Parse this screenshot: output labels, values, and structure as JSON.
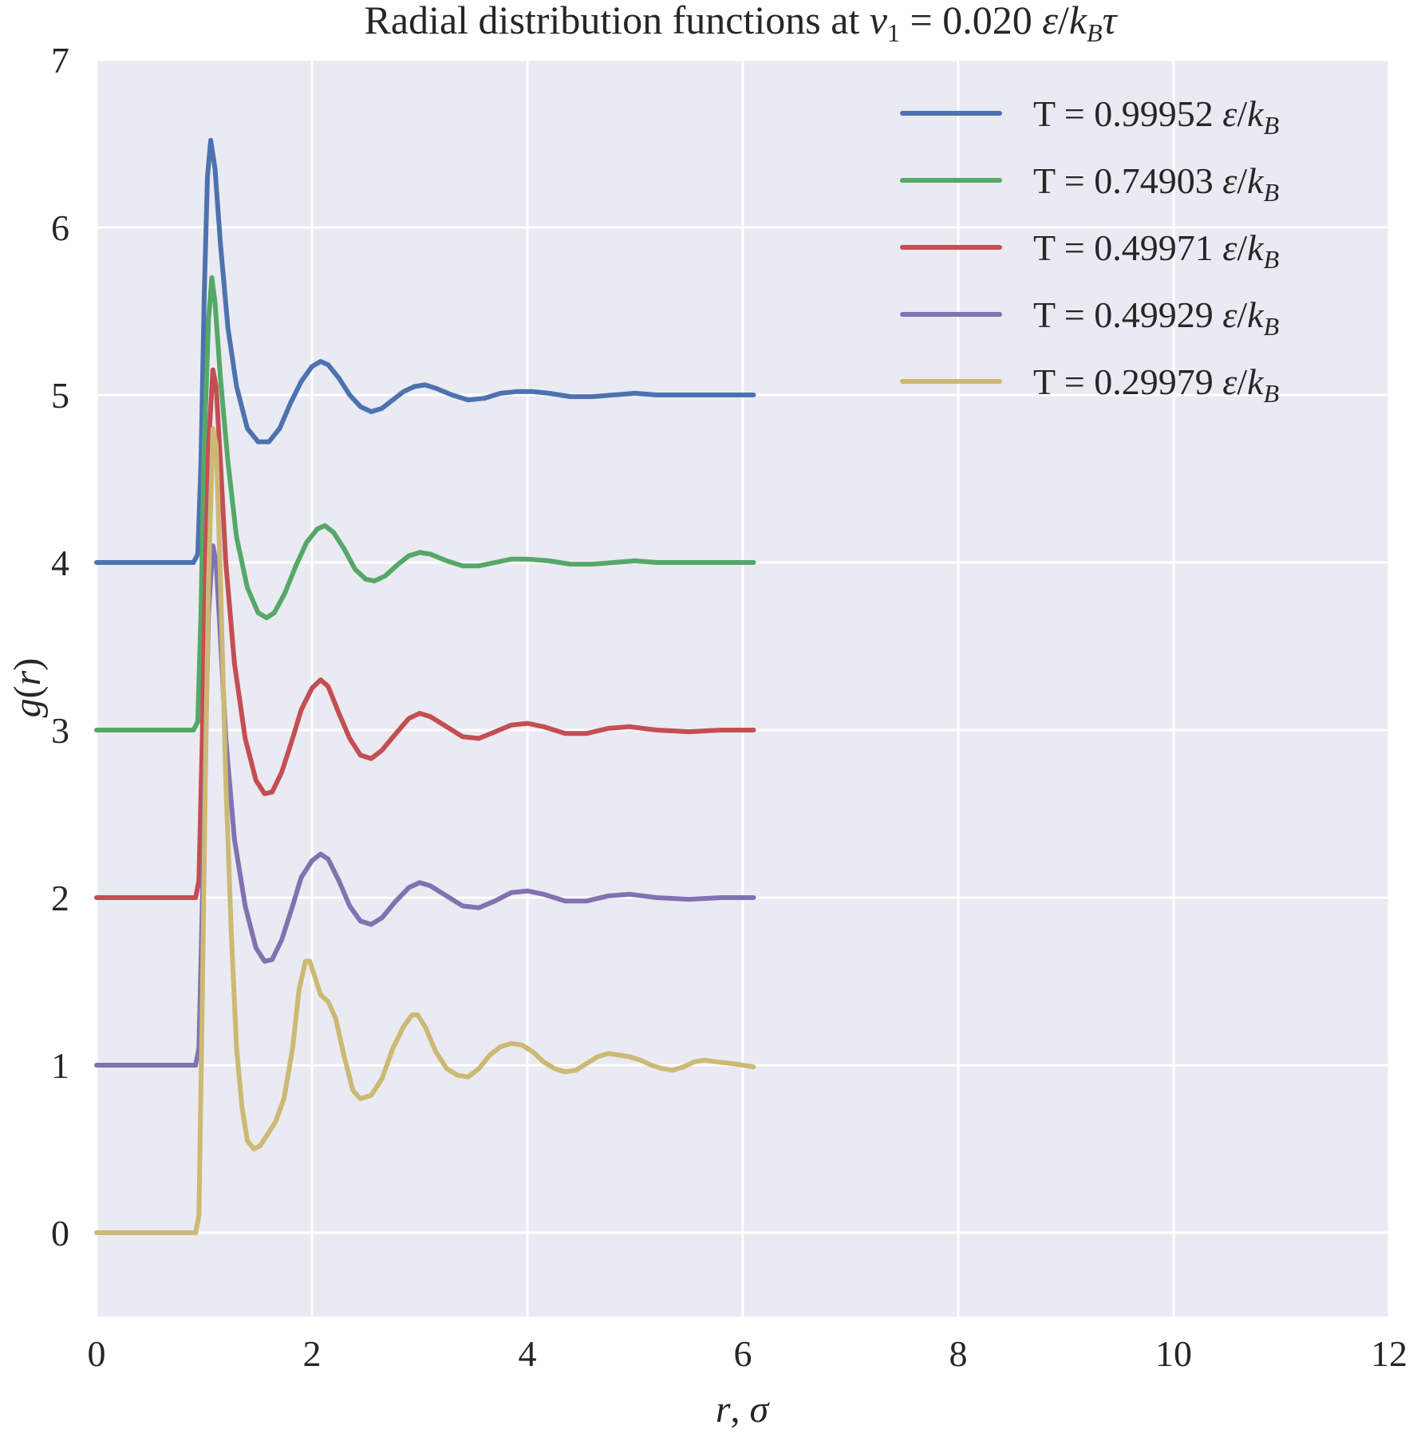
{
  "chart_data": {
    "type": "line",
    "title": {
      "prefix": "Radial distribution functions at ",
      "var": "v",
      "var_sub": "1",
      "equals": " = 0.020 ",
      "unit_eps": "ε",
      "unit_slash": "/",
      "unit_k": "k",
      "unit_sub": "B",
      "unit_tau": "τ"
    },
    "xlabel": {
      "var": "r",
      "sep": ", ",
      "unit": "σ"
    },
    "ylabel": {
      "g": "g",
      "open": "(",
      "var": "r",
      "close": ")"
    },
    "xlim": [
      0,
      12
    ],
    "ylim": [
      -0.5,
      7
    ],
    "xticks": [
      "0",
      "2",
      "4",
      "6",
      "8",
      "10",
      "12"
    ],
    "yticks": [
      "0",
      "1",
      "2",
      "3",
      "4",
      "5",
      "6",
      "7"
    ],
    "grid": true,
    "background": "#eaeaf2",
    "legend_position": "upper right",
    "legend_unit": {
      "eps": "ε",
      "slash": "/",
      "k": "k",
      "sub": "B"
    },
    "series": [
      {
        "name": "T = 0.99952",
        "color": "#4c72b0",
        "points": [
          [
            0.0,
            4.0
          ],
          [
            0.9,
            4.0
          ],
          [
            0.94,
            4.05
          ],
          [
            0.97,
            4.6
          ],
          [
            1.0,
            5.6
          ],
          [
            1.03,
            6.3
          ],
          [
            1.06,
            6.52
          ],
          [
            1.1,
            6.35
          ],
          [
            1.15,
            5.9
          ],
          [
            1.22,
            5.4
          ],
          [
            1.3,
            5.05
          ],
          [
            1.4,
            4.8
          ],
          [
            1.5,
            4.72
          ],
          [
            1.6,
            4.72
          ],
          [
            1.7,
            4.8
          ],
          [
            1.8,
            4.95
          ],
          [
            1.9,
            5.08
          ],
          [
            2.0,
            5.17
          ],
          [
            2.08,
            5.2
          ],
          [
            2.15,
            5.18
          ],
          [
            2.25,
            5.1
          ],
          [
            2.35,
            5.0
          ],
          [
            2.45,
            4.93
          ],
          [
            2.55,
            4.9
          ],
          [
            2.65,
            4.92
          ],
          [
            2.75,
            4.97
          ],
          [
            2.85,
            5.02
          ],
          [
            2.95,
            5.05
          ],
          [
            3.05,
            5.06
          ],
          [
            3.15,
            5.04
          ],
          [
            3.3,
            5.0
          ],
          [
            3.45,
            4.97
          ],
          [
            3.6,
            4.98
          ],
          [
            3.75,
            5.01
          ],
          [
            3.9,
            5.02
          ],
          [
            4.05,
            5.02
          ],
          [
            4.2,
            5.01
          ],
          [
            4.4,
            4.99
          ],
          [
            4.6,
            4.99
          ],
          [
            4.8,
            5.0
          ],
          [
            5.0,
            5.01
          ],
          [
            5.2,
            5.0
          ],
          [
            5.5,
            5.0
          ],
          [
            5.8,
            5.0
          ],
          [
            6.1,
            5.0
          ]
        ]
      },
      {
        "name": "T = 0.74903",
        "color": "#55a868",
        "points": [
          [
            0.0,
            3.0
          ],
          [
            0.9,
            3.0
          ],
          [
            0.94,
            3.05
          ],
          [
            0.97,
            3.7
          ],
          [
            1.0,
            4.7
          ],
          [
            1.04,
            5.45
          ],
          [
            1.07,
            5.7
          ],
          [
            1.1,
            5.55
          ],
          [
            1.15,
            5.1
          ],
          [
            1.22,
            4.6
          ],
          [
            1.3,
            4.15
          ],
          [
            1.4,
            3.85
          ],
          [
            1.5,
            3.7
          ],
          [
            1.58,
            3.67
          ],
          [
            1.65,
            3.7
          ],
          [
            1.75,
            3.82
          ],
          [
            1.85,
            3.98
          ],
          [
            1.95,
            4.12
          ],
          [
            2.05,
            4.2
          ],
          [
            2.12,
            4.22
          ],
          [
            2.2,
            4.18
          ],
          [
            2.3,
            4.08
          ],
          [
            2.4,
            3.96
          ],
          [
            2.5,
            3.9
          ],
          [
            2.58,
            3.89
          ],
          [
            2.68,
            3.92
          ],
          [
            2.8,
            3.99
          ],
          [
            2.9,
            4.04
          ],
          [
            3.0,
            4.06
          ],
          [
            3.1,
            4.05
          ],
          [
            3.25,
            4.01
          ],
          [
            3.4,
            3.98
          ],
          [
            3.55,
            3.98
          ],
          [
            3.7,
            4.0
          ],
          [
            3.85,
            4.02
          ],
          [
            4.0,
            4.02
          ],
          [
            4.2,
            4.01
          ],
          [
            4.4,
            3.99
          ],
          [
            4.6,
            3.99
          ],
          [
            4.8,
            4.0
          ],
          [
            5.0,
            4.01
          ],
          [
            5.2,
            4.0
          ],
          [
            5.5,
            4.0
          ],
          [
            5.8,
            4.0
          ],
          [
            6.1,
            4.0
          ]
        ]
      },
      {
        "name": "T = 0.49971",
        "color": "#c44e52",
        "points": [
          [
            0.0,
            2.0
          ],
          [
            0.92,
            2.0
          ],
          [
            0.95,
            2.1
          ],
          [
            0.98,
            2.9
          ],
          [
            1.01,
            3.9
          ],
          [
            1.04,
            4.7
          ],
          [
            1.08,
            5.15
          ],
          [
            1.11,
            5.05
          ],
          [
            1.15,
            4.6
          ],
          [
            1.2,
            4.0
          ],
          [
            1.28,
            3.4
          ],
          [
            1.38,
            2.95
          ],
          [
            1.48,
            2.7
          ],
          [
            1.56,
            2.62
          ],
          [
            1.63,
            2.63
          ],
          [
            1.72,
            2.75
          ],
          [
            1.82,
            2.95
          ],
          [
            1.9,
            3.12
          ],
          [
            2.0,
            3.25
          ],
          [
            2.08,
            3.3
          ],
          [
            2.15,
            3.26
          ],
          [
            2.25,
            3.1
          ],
          [
            2.35,
            2.95
          ],
          [
            2.45,
            2.85
          ],
          [
            2.55,
            2.83
          ],
          [
            2.65,
            2.88
          ],
          [
            2.78,
            2.98
          ],
          [
            2.9,
            3.07
          ],
          [
            3.0,
            3.1
          ],
          [
            3.1,
            3.08
          ],
          [
            3.25,
            3.02
          ],
          [
            3.4,
            2.96
          ],
          [
            3.55,
            2.95
          ],
          [
            3.7,
            2.99
          ],
          [
            3.85,
            3.03
          ],
          [
            4.0,
            3.04
          ],
          [
            4.15,
            3.02
          ],
          [
            4.35,
            2.98
          ],
          [
            4.55,
            2.98
          ],
          [
            4.75,
            3.01
          ],
          [
            4.95,
            3.02
          ],
          [
            5.2,
            3.0
          ],
          [
            5.5,
            2.99
          ],
          [
            5.8,
            3.0
          ],
          [
            6.1,
            3.0
          ]
        ]
      },
      {
        "name": "T = 0.49929",
        "color": "#8172b2",
        "points": [
          [
            0.0,
            1.0
          ],
          [
            0.92,
            1.0
          ],
          [
            0.95,
            1.1
          ],
          [
            0.98,
            1.9
          ],
          [
            1.01,
            2.9
          ],
          [
            1.04,
            3.7
          ],
          [
            1.08,
            4.1
          ],
          [
            1.11,
            4.0
          ],
          [
            1.15,
            3.55
          ],
          [
            1.2,
            2.95
          ],
          [
            1.28,
            2.35
          ],
          [
            1.38,
            1.95
          ],
          [
            1.48,
            1.7
          ],
          [
            1.56,
            1.62
          ],
          [
            1.63,
            1.63
          ],
          [
            1.72,
            1.75
          ],
          [
            1.82,
            1.95
          ],
          [
            1.9,
            2.12
          ],
          [
            2.0,
            2.22
          ],
          [
            2.08,
            2.26
          ],
          [
            2.15,
            2.23
          ],
          [
            2.25,
            2.1
          ],
          [
            2.35,
            1.95
          ],
          [
            2.45,
            1.86
          ],
          [
            2.55,
            1.84
          ],
          [
            2.65,
            1.88
          ],
          [
            2.78,
            1.98
          ],
          [
            2.9,
            2.06
          ],
          [
            3.0,
            2.09
          ],
          [
            3.1,
            2.07
          ],
          [
            3.25,
            2.01
          ],
          [
            3.4,
            1.95
          ],
          [
            3.55,
            1.94
          ],
          [
            3.7,
            1.98
          ],
          [
            3.85,
            2.03
          ],
          [
            4.0,
            2.04
          ],
          [
            4.15,
            2.02
          ],
          [
            4.35,
            1.98
          ],
          [
            4.55,
            1.98
          ],
          [
            4.75,
            2.01
          ],
          [
            4.95,
            2.02
          ],
          [
            5.2,
            2.0
          ],
          [
            5.5,
            1.99
          ],
          [
            5.8,
            2.0
          ],
          [
            6.1,
            2.0
          ]
        ]
      },
      {
        "name": "T = 0.29979",
        "color": "#ccb974",
        "points": [
          [
            0.0,
            0.0
          ],
          [
            0.92,
            0.0
          ],
          [
            0.95,
            0.1
          ],
          [
            0.98,
            1.3
          ],
          [
            1.01,
            2.7
          ],
          [
            1.04,
            3.9
          ],
          [
            1.08,
            4.8
          ],
          [
            1.11,
            4.7
          ],
          [
            1.15,
            3.9
          ],
          [
            1.2,
            2.7
          ],
          [
            1.25,
            1.8
          ],
          [
            1.3,
            1.1
          ],
          [
            1.35,
            0.75
          ],
          [
            1.4,
            0.55
          ],
          [
            1.46,
            0.5
          ],
          [
            1.52,
            0.52
          ],
          [
            1.58,
            0.58
          ],
          [
            1.66,
            0.66
          ],
          [
            1.74,
            0.8
          ],
          [
            1.82,
            1.1
          ],
          [
            1.88,
            1.45
          ],
          [
            1.94,
            1.62
          ],
          [
            1.98,
            1.62
          ],
          [
            2.03,
            1.52
          ],
          [
            2.08,
            1.42
          ],
          [
            2.15,
            1.38
          ],
          [
            2.22,
            1.28
          ],
          [
            2.3,
            1.05
          ],
          [
            2.38,
            0.85
          ],
          [
            2.45,
            0.8
          ],
          [
            2.55,
            0.82
          ],
          [
            2.65,
            0.92
          ],
          [
            2.75,
            1.1
          ],
          [
            2.85,
            1.23
          ],
          [
            2.93,
            1.3
          ],
          [
            2.98,
            1.3
          ],
          [
            3.05,
            1.23
          ],
          [
            3.15,
            1.08
          ],
          [
            3.25,
            0.98
          ],
          [
            3.35,
            0.94
          ],
          [
            3.45,
            0.93
          ],
          [
            3.55,
            0.98
          ],
          [
            3.65,
            1.06
          ],
          [
            3.75,
            1.11
          ],
          [
            3.85,
            1.13
          ],
          [
            3.95,
            1.12
          ],
          [
            4.05,
            1.08
          ],
          [
            4.15,
            1.02
          ],
          [
            4.25,
            0.98
          ],
          [
            4.35,
            0.96
          ],
          [
            4.45,
            0.97
          ],
          [
            4.55,
            1.01
          ],
          [
            4.65,
            1.05
          ],
          [
            4.75,
            1.07
          ],
          [
            4.85,
            1.06
          ],
          [
            4.95,
            1.05
          ],
          [
            5.05,
            1.03
          ],
          [
            5.15,
            1.0
          ],
          [
            5.25,
            0.98
          ],
          [
            5.35,
            0.97
          ],
          [
            5.45,
            0.99
          ],
          [
            5.55,
            1.02
          ],
          [
            5.65,
            1.03
          ],
          [
            5.75,
            1.02
          ],
          [
            5.9,
            1.01
          ],
          [
            6.0,
            1.0
          ],
          [
            6.1,
            0.99
          ]
        ]
      }
    ]
  }
}
